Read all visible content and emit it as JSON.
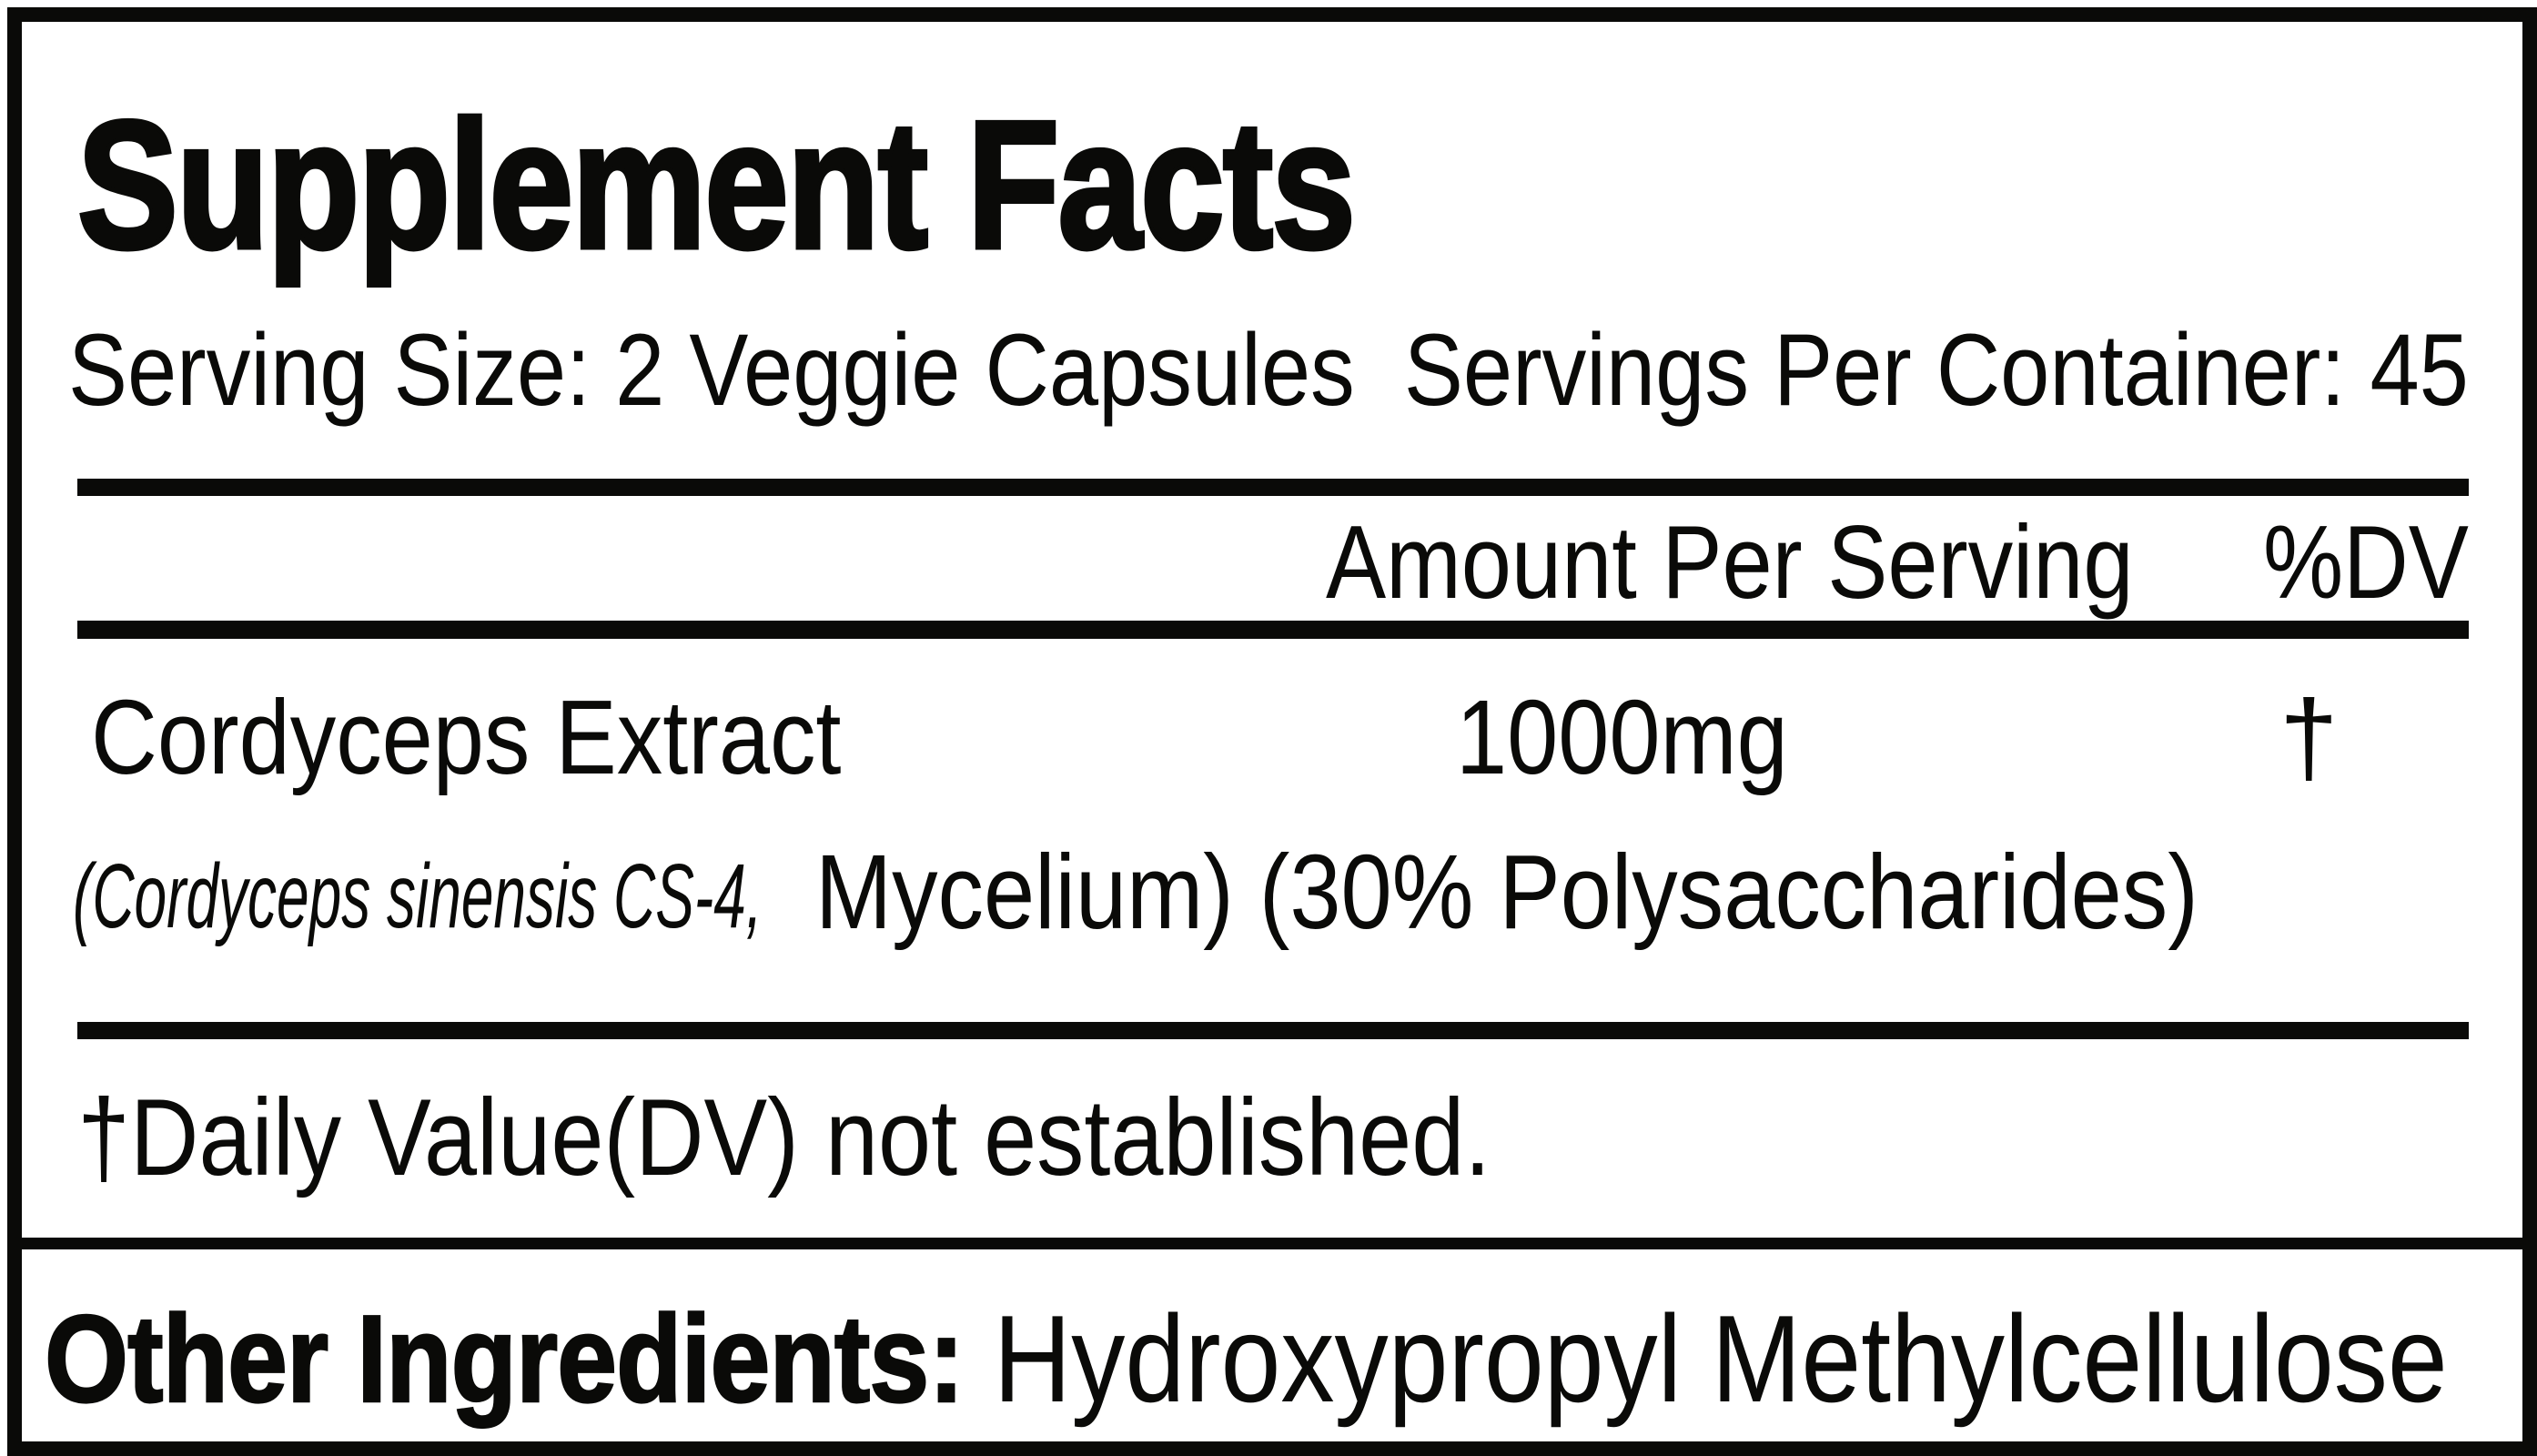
{
  "label": {
    "title": "Supplement Facts",
    "serving_size": "Serving Size: 2 Veggie Capsules",
    "servings_per_container": "Servings Per Container: 45",
    "columns": {
      "amount": "Amount Per Serving",
      "dv": "%DV"
    },
    "ingredients": [
      {
        "name": "Cordyceps Extract",
        "detail_italic": "(Cordyceps sinensis CS-4,",
        "detail_regular": "Mycelium) (30% Polysaccharides)",
        "amount": "1000mg",
        "dv": "†"
      }
    ],
    "footnote": "†Daily Value(DV) not established.",
    "other_ingredients": {
      "label": "Other Ingredients:",
      "value": " Hydroxypropyl Methylcellulose"
    }
  },
  "colors": {
    "ink": "#0a0a08",
    "background": "#ffffff"
  }
}
